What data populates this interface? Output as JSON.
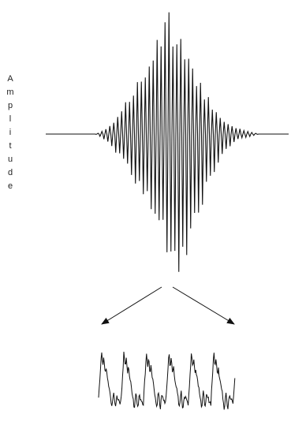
{
  "axis_label": "Amplitude"
}
